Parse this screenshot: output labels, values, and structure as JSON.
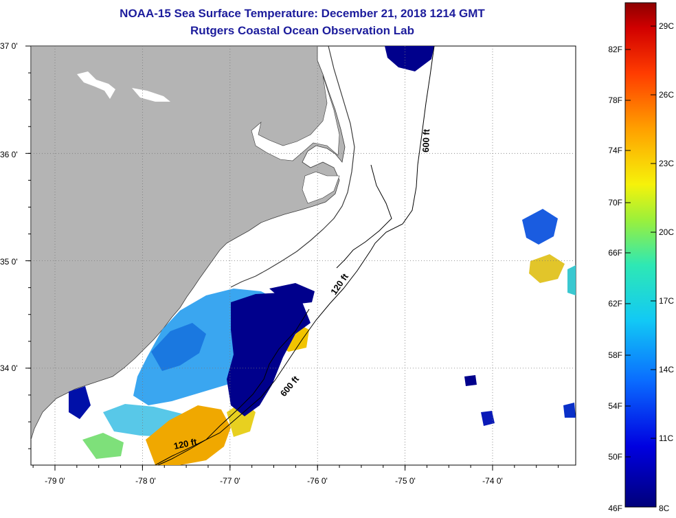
{
  "header": {
    "title": "NOAA-15 Sea Surface Temperature:  December 21, 2018 1214 GMT",
    "subtitle": "Rutgers Coastal Ocean Observation Lab"
  },
  "map": {
    "lat_ticks": [
      {
        "label": "37 0'",
        "lat": 37.0
      },
      {
        "label": "36 0'",
        "lat": 36.0
      },
      {
        "label": "35 0'",
        "lat": 35.0
      },
      {
        "label": "34 0'",
        "lat": 34.0
      }
    ],
    "lon_ticks": [
      {
        "label": "-79 0'",
        "lon": -79.0
      },
      {
        "label": "-78 0'",
        "lon": -78.0
      },
      {
        "label": "-77 0'",
        "lon": -77.0
      },
      {
        "label": "-76 0'",
        "lon": -76.0
      },
      {
        "label": "-75 0'",
        "lon": -75.0
      },
      {
        "label": "-74 0'",
        "lon": -74.0
      }
    ],
    "contours": [
      {
        "label": "600 ft"
      },
      {
        "label": "120 ft"
      },
      {
        "label": "600 ft"
      },
      {
        "label": "120 ft"
      }
    ],
    "colors": {
      "land": "#b4b4b4",
      "grid": "#888888",
      "contour": "#000000",
      "cold": "#00008c",
      "warm": "#f5a200"
    }
  },
  "colorbar": {
    "fahrenheit": [
      "82F",
      "78F",
      "74F",
      "70F",
      "66F",
      "62F",
      "58F",
      "54F",
      "50F",
      "46F"
    ],
    "celsius": [
      "29C",
      "26C",
      "23C",
      "20C",
      "17C",
      "14C",
      "11C",
      "8C"
    ],
    "range_f": [
      46,
      86
    ],
    "range_c": [
      8,
      30
    ]
  }
}
